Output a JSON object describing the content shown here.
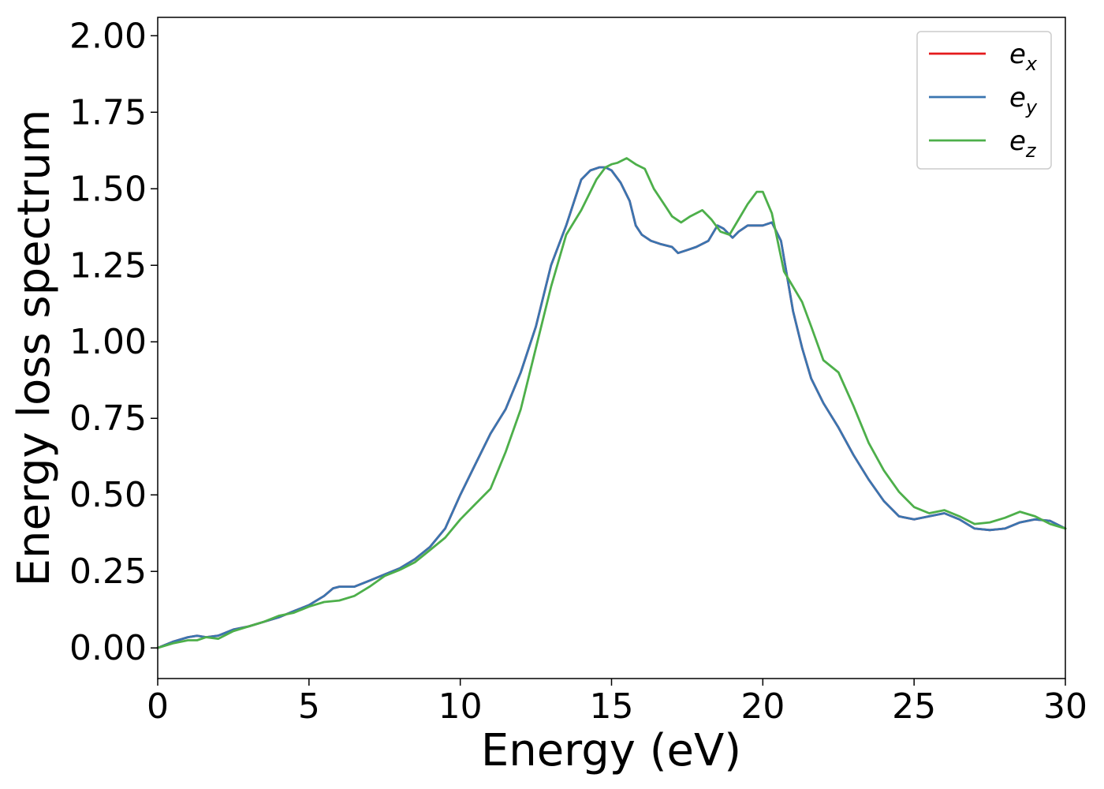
{
  "chart_data": {
    "type": "line",
    "title": "",
    "xlabel": "Energy (eV)",
    "ylabel": "Energy loss spectrum",
    "xlim": [
      0,
      30
    ],
    "ylim": [
      -0.1,
      2.06
    ],
    "xticks": [
      0,
      5,
      10,
      15,
      20,
      25,
      30
    ],
    "xtick_labels": [
      "0",
      "5",
      "10",
      "15",
      "20",
      "25",
      "30"
    ],
    "yticks": [
      0,
      0.25,
      0.5,
      0.75,
      1.0,
      1.25,
      1.5,
      1.75,
      2.0
    ],
    "ytick_labels": [
      "0.00",
      "0.25",
      "0.50",
      "0.75",
      "1.00",
      "1.25",
      "1.50",
      "1.75",
      "2.00"
    ],
    "grid": false,
    "legend_position": "top-right",
    "series": [
      {
        "name": "e",
        "subscript": "x",
        "color": "#e41a1c",
        "x": [
          0,
          0.5,
          1.0,
          1.3,
          1.6,
          2.0,
          2.5,
          3.0,
          3.5,
          4.0,
          4.5,
          5.0,
          5.5,
          5.8,
          6.0,
          6.5,
          7.0,
          7.5,
          8.0,
          8.5,
          9.0,
          9.5,
          10.0,
          10.5,
          11.0,
          11.5,
          12.0,
          12.5,
          13.0,
          13.5,
          14.0,
          14.3,
          14.6,
          14.8,
          15.0,
          15.3,
          15.6,
          15.8,
          16.0,
          16.3,
          16.6,
          17.0,
          17.2,
          17.5,
          17.8,
          18.2,
          18.5,
          18.7,
          19.0,
          19.2,
          19.5,
          19.8,
          20.0,
          20.3,
          20.6,
          21.0,
          21.3,
          21.6,
          22.0,
          22.5,
          23.0,
          23.5,
          24.0,
          24.5,
          25.0,
          25.5,
          26.0,
          26.5,
          27.0,
          27.5,
          28.0,
          28.5,
          29.0,
          29.5,
          30.0
        ],
        "values": [
          0.0,
          0.02,
          0.035,
          0.04,
          0.035,
          0.04,
          0.06,
          0.07,
          0.085,
          0.1,
          0.12,
          0.14,
          0.17,
          0.195,
          0.2,
          0.2,
          0.22,
          0.24,
          0.26,
          0.29,
          0.33,
          0.39,
          0.5,
          0.6,
          0.7,
          0.78,
          0.9,
          1.05,
          1.25,
          1.38,
          1.53,
          1.56,
          1.57,
          1.57,
          1.56,
          1.52,
          1.46,
          1.38,
          1.35,
          1.33,
          1.32,
          1.31,
          1.29,
          1.3,
          1.31,
          1.33,
          1.38,
          1.37,
          1.34,
          1.36,
          1.38,
          1.38,
          1.38,
          1.39,
          1.33,
          1.1,
          0.98,
          0.88,
          0.8,
          0.72,
          0.63,
          0.55,
          0.48,
          0.43,
          0.42,
          0.43,
          0.44,
          0.42,
          0.39,
          0.385,
          0.39,
          0.41,
          0.42,
          0.415,
          0.39
        ]
      },
      {
        "name": "e",
        "subscript": "y",
        "color": "#3a75b0",
        "x": [
          0,
          0.5,
          1.0,
          1.3,
          1.6,
          2.0,
          2.5,
          3.0,
          3.5,
          4.0,
          4.5,
          5.0,
          5.5,
          5.8,
          6.0,
          6.5,
          7.0,
          7.5,
          8.0,
          8.5,
          9.0,
          9.5,
          10.0,
          10.5,
          11.0,
          11.5,
          12.0,
          12.5,
          13.0,
          13.5,
          14.0,
          14.3,
          14.6,
          14.8,
          15.0,
          15.3,
          15.6,
          15.8,
          16.0,
          16.3,
          16.6,
          17.0,
          17.2,
          17.5,
          17.8,
          18.2,
          18.5,
          18.7,
          19.0,
          19.2,
          19.5,
          19.8,
          20.0,
          20.3,
          20.6,
          21.0,
          21.3,
          21.6,
          22.0,
          22.5,
          23.0,
          23.5,
          24.0,
          24.5,
          25.0,
          25.5,
          26.0,
          26.5,
          27.0,
          27.5,
          28.0,
          28.5,
          29.0,
          29.5,
          30.0
        ],
        "values": [
          0.0,
          0.02,
          0.035,
          0.04,
          0.035,
          0.04,
          0.06,
          0.07,
          0.085,
          0.1,
          0.12,
          0.14,
          0.17,
          0.195,
          0.2,
          0.2,
          0.22,
          0.24,
          0.26,
          0.29,
          0.33,
          0.39,
          0.5,
          0.6,
          0.7,
          0.78,
          0.9,
          1.05,
          1.25,
          1.38,
          1.53,
          1.56,
          1.57,
          1.57,
          1.56,
          1.52,
          1.46,
          1.38,
          1.35,
          1.33,
          1.32,
          1.31,
          1.29,
          1.3,
          1.31,
          1.33,
          1.38,
          1.37,
          1.34,
          1.36,
          1.38,
          1.38,
          1.38,
          1.39,
          1.33,
          1.1,
          0.98,
          0.88,
          0.8,
          0.72,
          0.63,
          0.55,
          0.48,
          0.43,
          0.42,
          0.43,
          0.44,
          0.42,
          0.39,
          0.385,
          0.39,
          0.41,
          0.42,
          0.415,
          0.39
        ]
      },
      {
        "name": "e",
        "subscript": "z",
        "color": "#4daf4a",
        "x": [
          0,
          0.5,
          1.0,
          1.3,
          1.6,
          2.0,
          2.5,
          3.0,
          3.5,
          4.0,
          4.5,
          5.0,
          5.5,
          6.0,
          6.5,
          7.0,
          7.5,
          8.0,
          8.5,
          9.0,
          9.5,
          10.0,
          10.5,
          11.0,
          11.5,
          12.0,
          12.5,
          13.0,
          13.5,
          14.0,
          14.5,
          14.8,
          15.0,
          15.2,
          15.5,
          15.8,
          16.1,
          16.4,
          16.8,
          17.0,
          17.3,
          17.6,
          18.0,
          18.3,
          18.6,
          18.9,
          19.2,
          19.5,
          19.8,
          20.0,
          20.3,
          20.7,
          21.0,
          21.3,
          21.6,
          22.0,
          22.5,
          23.0,
          23.5,
          24.0,
          24.5,
          25.0,
          25.5,
          26.0,
          26.5,
          27.0,
          27.5,
          28.0,
          28.5,
          29.0,
          29.5,
          30.0
        ],
        "values": [
          0.0,
          0.015,
          0.025,
          0.025,
          0.035,
          0.03,
          0.055,
          0.07,
          0.085,
          0.105,
          0.115,
          0.135,
          0.15,
          0.155,
          0.17,
          0.2,
          0.235,
          0.255,
          0.28,
          0.32,
          0.36,
          0.42,
          0.47,
          0.52,
          0.64,
          0.78,
          0.98,
          1.18,
          1.35,
          1.43,
          1.53,
          1.57,
          1.58,
          1.585,
          1.6,
          1.58,
          1.565,
          1.5,
          1.44,
          1.41,
          1.39,
          1.41,
          1.43,
          1.4,
          1.36,
          1.35,
          1.4,
          1.45,
          1.49,
          1.49,
          1.42,
          1.23,
          1.18,
          1.13,
          1.05,
          0.94,
          0.9,
          0.79,
          0.67,
          0.58,
          0.51,
          0.46,
          0.44,
          0.45,
          0.43,
          0.405,
          0.41,
          0.425,
          0.445,
          0.43,
          0.405,
          0.39
        ]
      }
    ]
  }
}
